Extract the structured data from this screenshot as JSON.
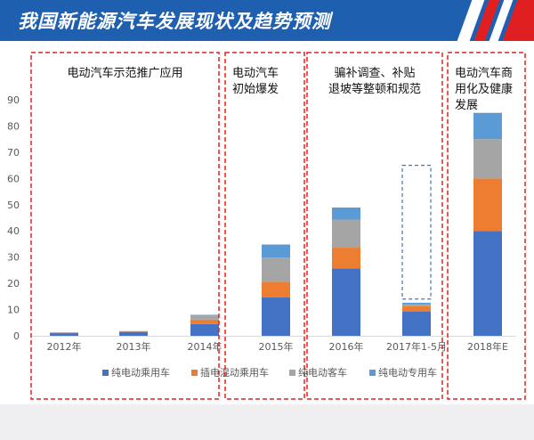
{
  "header": {
    "title": "我国新能源汽车发展现状及趋势预测",
    "background_color": "#1f5fb0",
    "stripe_colors": [
      "#ffffff",
      "#e02020"
    ]
  },
  "chart_data": {
    "type": "bar",
    "stacked": true,
    "title": "",
    "xlabel": "",
    "ylabel": "",
    "ylim": [
      0,
      90
    ],
    "y_ticks": [
      0,
      10,
      20,
      30,
      40,
      50,
      60,
      70,
      80,
      90
    ],
    "categories": [
      "2012年",
      "2013年",
      "2014年",
      "2015年",
      "2016年",
      "2017年1-5月",
      "2018年E"
    ],
    "series": [
      {
        "name": "纯电动乘用车",
        "color": "#4472c4",
        "values": [
          1.1,
          1.5,
          4.5,
          14.6,
          25.7,
          9.3,
          40
        ]
      },
      {
        "name": "插电混动乘用车",
        "color": "#ed7d31",
        "values": [
          0.1,
          0.2,
          1.7,
          6.0,
          7.9,
          2.0,
          20
        ]
      },
      {
        "name": "纯电动客车",
        "color": "#a5a5a5",
        "values": [
          0.1,
          0.1,
          1.5,
          9.2,
          10.7,
          0.7,
          15
        ]
      },
      {
        "name": "纯电动专用车",
        "color": "#5b9bd5",
        "values": [
          0.0,
          0.0,
          0.3,
          5.0,
          4.6,
          0.6,
          10
        ]
      }
    ],
    "projection_box": {
      "category": "2017年1-5月",
      "from": 14,
      "to": 65,
      "color": "#4472c4"
    },
    "phases": [
      {
        "label_lines": [
          "电动汽车示范推广应用"
        ],
        "categories": [
          "2012年",
          "2013年",
          "2014年"
        ]
      },
      {
        "label_lines": [
          "电动汽车",
          "初始爆发"
        ],
        "categories": [
          "2015年"
        ]
      },
      {
        "label_lines": [
          "骗补调查、补贴",
          "退坡等整顿和规范"
        ],
        "categories": [
          "2016年",
          "2017年1-5月"
        ]
      },
      {
        "label_lines": [
          "电动汽车商",
          "用化及健康",
          "发展"
        ],
        "categories": [
          "2018年E"
        ]
      }
    ],
    "phase_border_color": "#e02020",
    "legend_position": "bottom"
  }
}
